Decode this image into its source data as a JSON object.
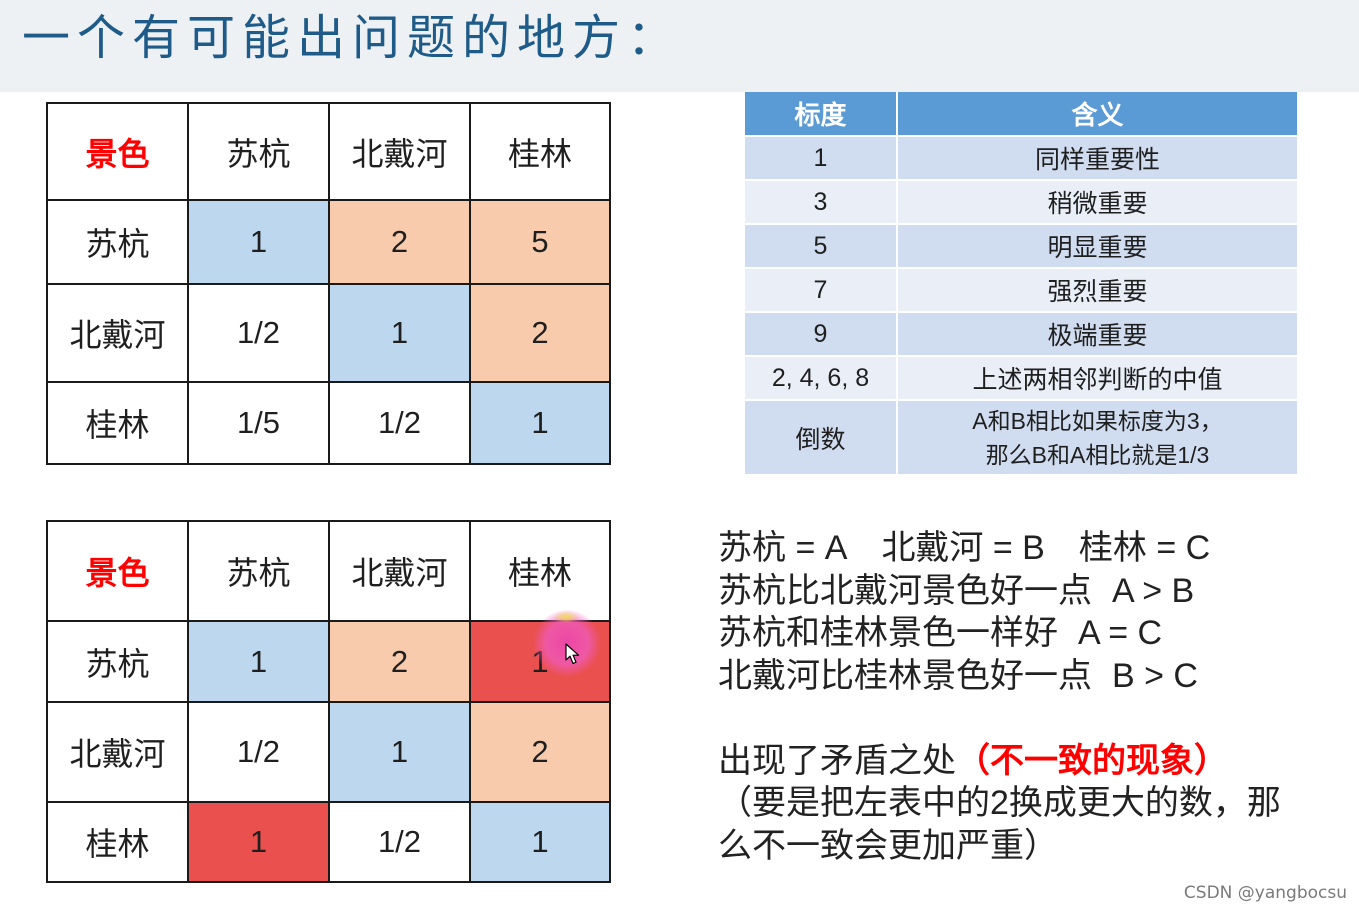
{
  "header": {
    "title": "一个有可能出问题的地方："
  },
  "colors": {
    "header_band": "#eef1f3",
    "title": "#1f5b88",
    "corner_label": "#ff0000",
    "emphasis": "#ff0000",
    "scale_header": "#5b9bd5",
    "scale_header_text": "#ffffff"
  },
  "matrix_top": {
    "corner": "景色",
    "columns": [
      "苏杭",
      "北戴河",
      "桂林"
    ],
    "rows": [
      {
        "label": "苏杭",
        "cells": [
          {
            "value": "1",
            "fill": "#bdd7ee"
          },
          {
            "value": "2",
            "fill": "#f8cbad"
          },
          {
            "value": "5",
            "fill": "#f8cbad"
          }
        ]
      },
      {
        "label": "北戴河",
        "cells": [
          {
            "value": "1/2",
            "fill": "#ffffff"
          },
          {
            "value": "1",
            "fill": "#bdd7ee"
          },
          {
            "value": "2",
            "fill": "#f8cbad"
          }
        ]
      },
      {
        "label": "桂林",
        "cells": [
          {
            "value": "1/5",
            "fill": "#ffffff"
          },
          {
            "value": "1/2",
            "fill": "#ffffff"
          },
          {
            "value": "1",
            "fill": "#bdd7ee"
          }
        ]
      }
    ]
  },
  "matrix_bottom": {
    "corner": "景色",
    "columns": [
      "苏杭",
      "北戴河",
      "桂林"
    ],
    "rows": [
      {
        "label": "苏杭",
        "cells": [
          {
            "value": "1",
            "fill": "#bdd7ee"
          },
          {
            "value": "2",
            "fill": "#f8cbad"
          },
          {
            "value": "1",
            "fill": "#ea504e"
          }
        ]
      },
      {
        "label": "北戴河",
        "cells": [
          {
            "value": "1/2",
            "fill": "#ffffff"
          },
          {
            "value": "1",
            "fill": "#bdd7ee"
          },
          {
            "value": "2",
            "fill": "#f8cbad"
          }
        ]
      },
      {
        "label": "桂林",
        "cells": [
          {
            "value": "1",
            "fill": "#ea504e"
          },
          {
            "value": "1/2",
            "fill": "#ffffff"
          },
          {
            "value": "1",
            "fill": "#bdd7ee"
          }
        ]
      }
    ]
  },
  "scale_table": {
    "headers": [
      "标度",
      "含义"
    ],
    "rows": [
      {
        "scale": "1",
        "meaning": "同样重要性",
        "fill": "#d0dcef"
      },
      {
        "scale": "3",
        "meaning": "稍微重要",
        "fill": "#e9eef7"
      },
      {
        "scale": "5",
        "meaning": "明显重要",
        "fill": "#d0dcef"
      },
      {
        "scale": "7",
        "meaning": "强烈重要",
        "fill": "#e9eef7"
      },
      {
        "scale": "9",
        "meaning": "极端重要",
        "fill": "#d0dcef"
      },
      {
        "scale": "2, 4, 6, 8",
        "meaning": "上述两相邻判断的中值",
        "fill": "#e9eef7"
      },
      {
        "scale": "倒数",
        "meaning": [
          "A和B相比如果标度为3，",
          "那么B和A相比就是1/3"
        ],
        "fill": "#d0dcef"
      }
    ]
  },
  "notes": {
    "definitions": [
      "苏杭 = A",
      "北戴河 = B",
      "桂林 = C"
    ],
    "comparisons": [
      {
        "statement": "苏杭比北戴河景色好一点",
        "relation": "A > B"
      },
      {
        "statement": "苏杭和桂林景色一样好",
        "relation": "A = C"
      },
      {
        "statement": "北戴河比桂林景色好一点",
        "relation": "B > C"
      }
    ],
    "conflict": {
      "lead": "出现了矛盾之处",
      "highlight": "（不一致的现象）",
      "detail": [
        "（要是把左表中的2换成更大的数，那",
        "么不一致会更加严重）"
      ]
    }
  },
  "watermark": "CSDN @yangbocsu"
}
